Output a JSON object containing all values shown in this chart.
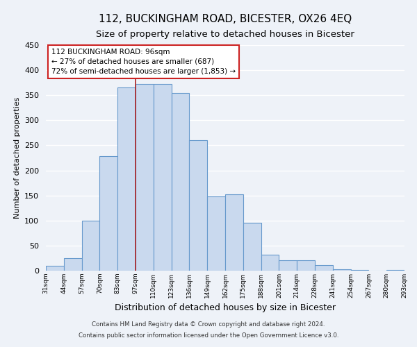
{
  "title": "112, BUCKINGHAM ROAD, BICESTER, OX26 4EQ",
  "subtitle": "Size of property relative to detached houses in Bicester",
  "xlabel": "Distribution of detached houses by size in Bicester",
  "ylabel": "Number of detached properties",
  "bin_labels": [
    "31sqm",
    "44sqm",
    "57sqm",
    "70sqm",
    "83sqm",
    "97sqm",
    "110sqm",
    "123sqm",
    "136sqm",
    "149sqm",
    "162sqm",
    "175sqm",
    "188sqm",
    "201sqm",
    "214sqm",
    "228sqm",
    "241sqm",
    "254sqm",
    "267sqm",
    "280sqm",
    "293sqm"
  ],
  "bar_heights": [
    10,
    25,
    100,
    228,
    365,
    372,
    373,
    355,
    260,
    148,
    153,
    96,
    32,
    21,
    21,
    11,
    3,
    1,
    0,
    2
  ],
  "bar_color": "#c9d9ee",
  "bar_edge_color": "#6699cc",
  "vline_x_index": 5,
  "vline_color": "#aa2222",
  "annotation_line1": "112 BUCKINGHAM ROAD: 96sqm",
  "annotation_line2": "← 27% of detached houses are smaller (687)",
  "annotation_line3": "72% of semi-detached houses are larger (1,853) →",
  "annotation_box_color": "#ffffff",
  "annotation_box_edge": "#cc2222",
  "ylim": [
    0,
    450
  ],
  "yticks": [
    0,
    50,
    100,
    150,
    200,
    250,
    300,
    350,
    400,
    450
  ],
  "footer_line1": "Contains HM Land Registry data © Crown copyright and database right 2024.",
  "footer_line2": "Contains public sector information licensed under the Open Government Licence v3.0.",
  "bg_color": "#eef2f8",
  "plot_bg_color": "#eef2f8",
  "grid_color": "#ffffff",
  "title_fontsize": 11,
  "subtitle_fontsize": 9.5
}
